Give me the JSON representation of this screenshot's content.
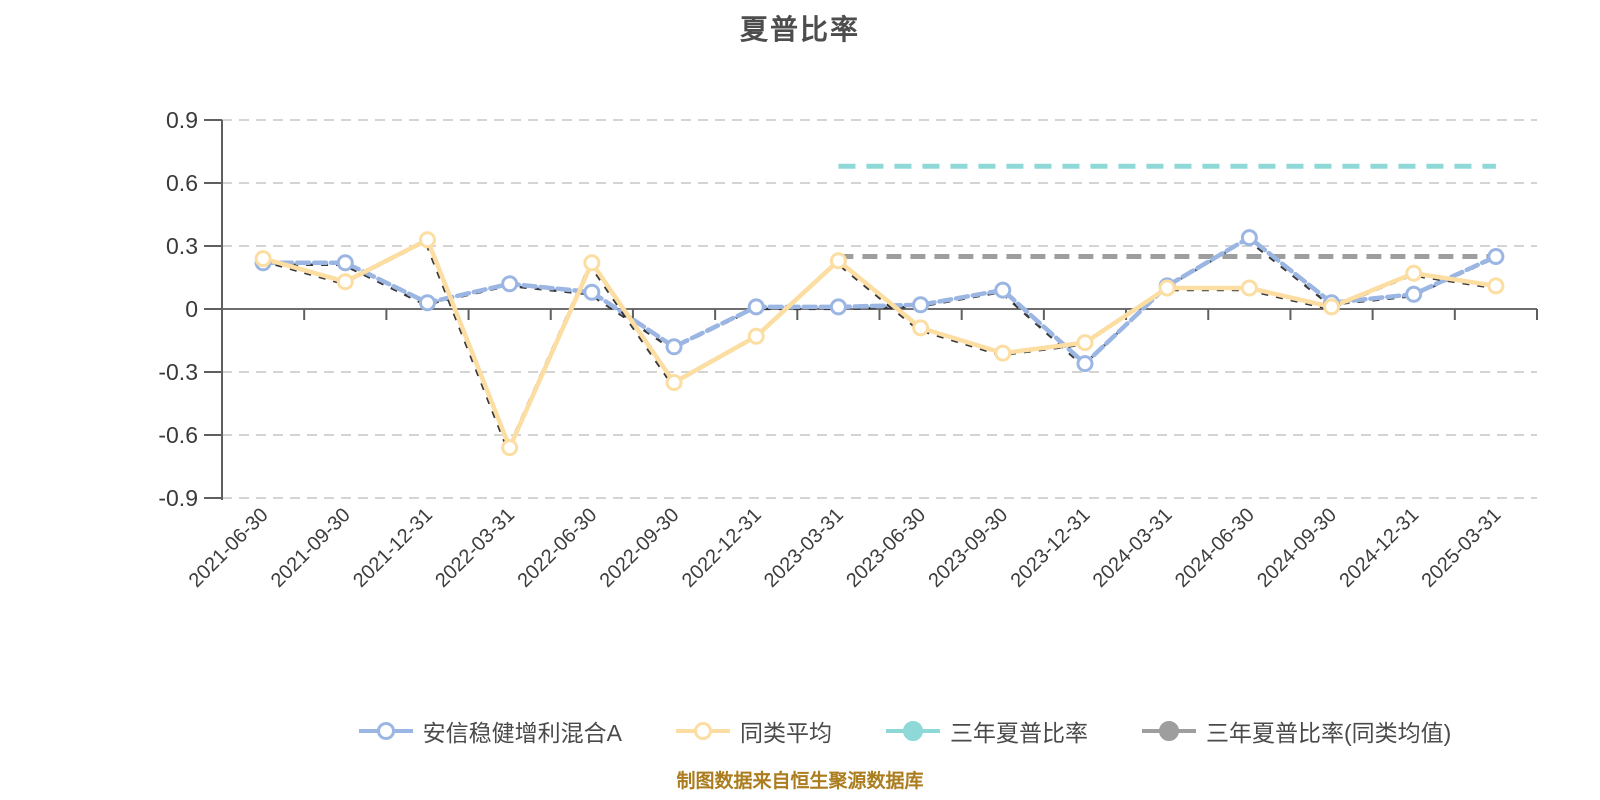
{
  "header": {
    "title": "夏普比率"
  },
  "chart_data": {
    "type": "line",
    "title": "夏普比率",
    "categories": [
      "2021-06-30",
      "2021-09-30",
      "2021-12-31",
      "2022-03-31",
      "2022-06-30",
      "2022-09-30",
      "2022-12-31",
      "2023-03-31",
      "2023-06-30",
      "2023-09-30",
      "2023-12-31",
      "2024-03-31",
      "2024-06-30",
      "2024-09-30",
      "2024-12-31",
      "2025-03-31"
    ],
    "series": [
      {
        "name": "安信稳健增利混合A",
        "type": "line-dashed",
        "color": "#9bb6e3",
        "values": [
          0.22,
          0.22,
          0.03,
          0.12,
          0.08,
          -0.18,
          0.01,
          0.01,
          0.02,
          0.09,
          -0.26,
          0.11,
          0.34,
          0.03,
          0.07,
          0.25
        ]
      },
      {
        "name": "同类平均",
        "type": "line-solid",
        "color": "#fcdda2",
        "values": [
          0.24,
          0.13,
          0.33,
          -0.66,
          0.22,
          -0.35,
          -0.13,
          0.23,
          -0.09,
          -0.21,
          -0.16,
          0.1,
          0.1,
          0.01,
          0.17,
          0.11
        ]
      },
      {
        "name": "三年夏普比率",
        "type": "horizontal-dashed",
        "color": "#8fd8d8",
        "value": 0.68,
        "span_categories": [
          "2023-03-31",
          "2025-03-31"
        ]
      },
      {
        "name": "三年夏普比率(同类均值)",
        "type": "horizontal-dashed",
        "color": "#9e9e9e",
        "value": 0.25,
        "span_categories": [
          "2023-03-31",
          "2025-03-31"
        ]
      }
    ],
    "ylim": [
      -0.9,
      0.9
    ],
    "ytick_step": 0.3,
    "ytick_labels": [
      "0.9",
      "0.6",
      "0.3",
      "0",
      "-0.3",
      "-0.6",
      "-0.9"
    ],
    "grid": "dashed-horizontal",
    "grid_color": "#d4d4d4",
    "axis_color": "#5f5f5f",
    "tick_label_color": "#3a3a3a",
    "line_shadow_color": "#222222",
    "xlabel": "",
    "ylabel": ""
  },
  "legend": {
    "items": [
      {
        "label": "安信稳健增利混合A",
        "color": "#9bb6e3",
        "symbol": "hollow-circle"
      },
      {
        "label": "同类平均",
        "color": "#fcdda2",
        "symbol": "hollow-circle"
      },
      {
        "label": "三年夏普比率",
        "color": "#8fd8d8",
        "symbol": "solid-circle"
      },
      {
        "label": "三年夏普比率(同类均值)",
        "color": "#9e9e9e",
        "symbol": "solid-circle"
      }
    ],
    "text_color": "#4a4a4a"
  },
  "footer": {
    "note": "制图数据来自恒生聚源数据库",
    "color": "#ab7d1e"
  }
}
